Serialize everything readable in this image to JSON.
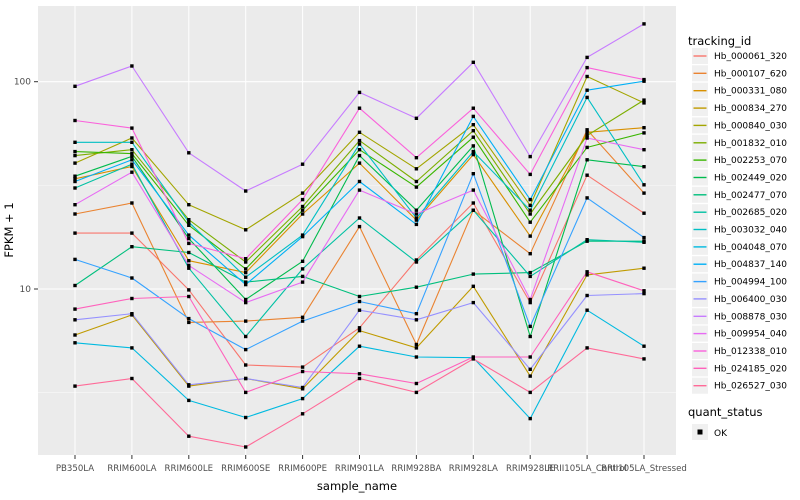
{
  "legend": {
    "tracking_title": "tracking_id",
    "quant_title": "quant_status",
    "quant_items": [
      {
        "label": "OK",
        "marker": "black-square"
      }
    ]
  },
  "colors": {
    "panel_bg": "#EBEBEB",
    "grid_major": "#FFFFFF",
    "grid_minor": "#F7F7F7",
    "tick_text": "#4D4D4D",
    "tick_mark": "#333333",
    "point": "#000000",
    "legend_key_bg": "#F0F0F0"
  },
  "chart_data": {
    "type": "line",
    "title": "",
    "xlabel": "sample_name",
    "ylabel": "FPKM + 1",
    "y_scale": "log10",
    "grid": "on",
    "legend_position": "right",
    "point_marker": "black-square",
    "y_ticks": [
      10,
      100
    ],
    "y_minor_breaks": [
      3.162,
      31.62,
      316.2
    ],
    "ylim": [
      1.5,
      210
    ],
    "categories": [
      "PB350LA",
      "RRIM600LA",
      "RRIM600LE",
      "RRIM600SE",
      "RRIM600PE",
      "RRIM901LA",
      "RRIM928BA",
      "RRIM928LA",
      "RRIM928LE",
      "RRII105LA_Control",
      "RRII105LA_Stressed"
    ],
    "quant_status": "OK",
    "series": [
      {
        "name": "Hb_000061_320",
        "color": "#F8766D",
        "values": [
          18.6,
          18.6,
          9.9,
          4.3,
          4.2,
          6.5,
          13.8,
          26,
          8.6,
          35.4,
          23.2
        ]
      },
      {
        "name": "Hb_000107_620",
        "color": "#EA8331",
        "values": [
          23,
          26,
          6.9,
          7.0,
          7.3,
          20,
          5.4,
          24,
          14.8,
          58.6,
          29
        ]
      },
      {
        "name": "Hb_000331_080",
        "color": "#D89000",
        "values": [
          34,
          39,
          13.7,
          12,
          23,
          40.5,
          21.5,
          44.5,
          18,
          57,
          60
        ]
      },
      {
        "name": "Hb_000834_270",
        "color": "#C09B00",
        "values": [
          6.0,
          7.5,
          3.4,
          3.7,
          3.3,
          6.3,
          5.2,
          10.3,
          3.8,
          11.7,
          12.6
        ]
      },
      {
        "name": "Hb_000840_030",
        "color": "#A3A500",
        "values": [
          40.5,
          53.5,
          25.5,
          19.3,
          29,
          57,
          38,
          62,
          25.3,
          106,
          79
        ]
      },
      {
        "name": "Hb_001832_010",
        "color": "#7CAE00",
        "values": [
          44,
          47,
          21.6,
          13.5,
          25,
          52,
          33,
          58,
          23,
          55,
          81.5
        ]
      },
      {
        "name": "Hb_002253_070",
        "color": "#39B600",
        "values": [
          46,
          45,
          20.3,
          12.5,
          24,
          47,
          31,
          54,
          21,
          48.2,
          56.6
        ]
      },
      {
        "name": "Hb_002449_020",
        "color": "#00BB4E",
        "values": [
          35,
          43.6,
          17.5,
          8.9,
          13.6,
          44,
          24,
          49,
          5.9,
          42,
          38.9
        ]
      },
      {
        "name": "Hb_002477_070",
        "color": "#00BF7D",
        "values": [
          10.4,
          16,
          15,
          10.8,
          11.5,
          9.2,
          10.2,
          11.8,
          12,
          17,
          17
        ]
      },
      {
        "name": "Hb_002685_020",
        "color": "#00C1A3",
        "values": [
          30.7,
          40,
          12.6,
          5.9,
          12.5,
          22,
          13.5,
          24,
          11.5,
          17.3,
          16.8
        ]
      },
      {
        "name": "Hb_003032_040",
        "color": "#00BFC4",
        "values": [
          51,
          51,
          21,
          11.4,
          18.2,
          50,
          22,
          46,
          24,
          84,
          31.8
        ]
      },
      {
        "name": "Hb_004048_070",
        "color": "#00BAE0",
        "values": [
          5.5,
          5.2,
          2.9,
          2.4,
          2.96,
          5.3,
          4.7,
          4.66,
          2.37,
          7.9,
          5.3
        ]
      },
      {
        "name": "Hb_004837_140",
        "color": "#00B0F6",
        "values": [
          33,
          42,
          18.2,
          10.5,
          17.9,
          33,
          20.5,
          68,
          27,
          91,
          100.6
        ]
      },
      {
        "name": "Hb_004994_100",
        "color": "#35A2FF",
        "values": [
          13.9,
          11.3,
          7.2,
          5.1,
          7.0,
          8.7,
          7.6,
          36,
          6.6,
          27.5,
          17.7
        ]
      },
      {
        "name": "Hb_006400_030",
        "color": "#9590FF",
        "values": [
          7.1,
          7.6,
          3.45,
          3.7,
          3.35,
          7.9,
          7.1,
          8.6,
          4.1,
          9.3,
          9.5
        ]
      },
      {
        "name": "Hb_008878_030",
        "color": "#C77CFF",
        "values": [
          95,
          119,
          45.4,
          29.7,
          40,
          88.8,
          66.6,
          124,
          43.5,
          131,
          190
        ]
      },
      {
        "name": "Hb_009954_040",
        "color": "#E76BF3",
        "values": [
          25.5,
          36.6,
          13,
          8.6,
          10.8,
          30,
          23,
          30,
          8.9,
          53.5,
          47
        ]
      },
      {
        "name": "Hb_012338_010",
        "color": "#FA62DB",
        "values": [
          65,
          59.7,
          16.6,
          14,
          27,
          74.5,
          43,
          74.5,
          35.7,
          117,
          102.4
        ]
      },
      {
        "name": "Hb_024185_020",
        "color": "#FF62BC",
        "values": [
          8.0,
          9.0,
          9.2,
          3.17,
          4.0,
          3.9,
          3.5,
          4.7,
          4.7,
          12.1,
          9.8
        ]
      },
      {
        "name": "Hb_026527_030",
        "color": "#FF6A98",
        "values": [
          3.4,
          3.7,
          1.95,
          1.73,
          2.5,
          3.7,
          3.17,
          4.6,
          3.17,
          5.2,
          4.6
        ]
      }
    ]
  }
}
